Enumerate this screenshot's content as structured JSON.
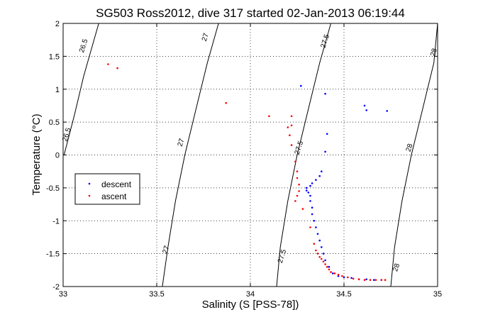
{
  "chart_data": {
    "type": "scatter",
    "title": "SG503 Ross2012, dive 317 started 02-Jan-2013 06:19:44",
    "xlabel": "Salinity (S [PSS-78])",
    "ylabel": "Temperature (°C)",
    "xlim": [
      33,
      35
    ],
    "ylim": [
      -2,
      2
    ],
    "grid": true,
    "grid_style": "dotted",
    "legend_position": "middle-left",
    "x_ticks": [
      33,
      33.5,
      34,
      34.5,
      35
    ],
    "x_tick_labels": [
      "33",
      "33.5",
      "34",
      "34.5",
      "35"
    ],
    "y_ticks": [
      -2,
      -1.5,
      -1,
      -0.5,
      0,
      0.5,
      1,
      1.5,
      2
    ],
    "y_tick_labels": [
      "-2",
      "-1.5",
      "-1",
      "-0.5",
      "0",
      "0.5",
      "1",
      "1.5",
      "2"
    ],
    "contours": [
      {
        "label": "26.5",
        "points": [
          [
            33.005,
            0
          ],
          [
            33.06,
            0.6
          ],
          [
            33.11,
            1.2
          ],
          [
            33.15,
            1.6
          ],
          [
            33.19,
            2
          ]
        ],
        "label_positions": [
          [
            33.03,
            0.3
          ],
          [
            33.12,
            1.65
          ]
        ]
      },
      {
        "label": "27",
        "points": [
          [
            33.53,
            -2
          ],
          [
            33.56,
            -1.4
          ],
          [
            33.6,
            -0.7
          ],
          [
            33.65,
            0
          ],
          [
            33.71,
            0.7
          ],
          [
            33.77,
            1.4
          ],
          [
            33.83,
            2
          ]
        ],
        "label_positions": [
          [
            33.56,
            -1.45
          ],
          [
            33.64,
            0.18
          ],
          [
            33.77,
            1.78
          ]
        ]
      },
      {
        "label": "27.5",
        "points": [
          [
            34.14,
            -2
          ],
          [
            34.16,
            -1.4
          ],
          [
            34.2,
            -0.7
          ],
          [
            34.25,
            0
          ],
          [
            34.31,
            0.7
          ],
          [
            34.37,
            1.4
          ],
          [
            34.43,
            2
          ]
        ],
        "label_positions": [
          [
            34.18,
            -1.55
          ],
          [
            34.27,
            0.1
          ],
          [
            34.41,
            1.72
          ]
        ]
      },
      {
        "label": "28",
        "points": [
          [
            34.75,
            -2
          ],
          [
            34.77,
            -1.4
          ],
          [
            34.81,
            -0.7
          ],
          [
            34.86,
            0
          ],
          [
            34.92,
            0.7
          ],
          [
            34.98,
            1.4
          ],
          [
            35.04,
            2
          ]
        ],
        "label_positions": [
          [
            34.79,
            -1.72
          ],
          [
            34.86,
            0.1
          ],
          [
            34.99,
            1.55
          ]
        ]
      }
    ],
    "series": [
      {
        "name": "descent",
        "color": "#0000ff",
        "marker": "dot",
        "points": [
          [
            34.27,
            1.05
          ],
          [
            34.4,
            0.93
          ],
          [
            34.61,
            0.75
          ],
          [
            34.62,
            0.68
          ],
          [
            34.73,
            0.67
          ],
          [
            34.41,
            0.32
          ],
          [
            34.4,
            0.05
          ],
          [
            34.38,
            -0.25
          ],
          [
            34.37,
            -0.32
          ],
          [
            34.35,
            -0.38
          ],
          [
            34.33,
            -0.43
          ],
          [
            34.32,
            -0.47
          ],
          [
            34.3,
            -0.5
          ],
          [
            34.3,
            -0.54
          ],
          [
            34.31,
            -0.57
          ],
          [
            34.32,
            -0.62
          ],
          [
            34.32,
            -0.7
          ],
          [
            34.33,
            -0.8
          ],
          [
            34.33,
            -0.9
          ],
          [
            34.34,
            -1.0
          ],
          [
            34.35,
            -1.1
          ],
          [
            34.36,
            -1.2
          ],
          [
            34.37,
            -1.3
          ],
          [
            34.38,
            -1.4
          ],
          [
            34.39,
            -1.5
          ],
          [
            34.4,
            -1.6
          ],
          [
            34.42,
            -1.7
          ],
          [
            34.44,
            -1.8
          ],
          [
            34.47,
            -1.84
          ],
          [
            34.5,
            -1.86
          ],
          [
            34.54,
            -1.87
          ],
          [
            34.58,
            -1.89
          ],
          [
            34.62,
            -1.89
          ],
          [
            34.66,
            -1.9
          ],
          [
            34.7,
            -1.9
          ]
        ]
      },
      {
        "name": "ascent",
        "color": "#ff0000",
        "marker": "dot",
        "points": [
          [
            33.24,
            1.38
          ],
          [
            33.29,
            1.32
          ],
          [
            33.87,
            0.79
          ],
          [
            34.1,
            0.59
          ],
          [
            34.22,
            0.59
          ],
          [
            34.22,
            0.45
          ],
          [
            34.2,
            0.42
          ],
          [
            34.21,
            0.3
          ],
          [
            34.22,
            0.15
          ],
          [
            34.24,
            -0.1
          ],
          [
            34.25,
            -0.25
          ],
          [
            34.25,
            -0.35
          ],
          [
            34.26,
            -0.45
          ],
          [
            34.26,
            -0.55
          ],
          [
            34.25,
            -0.62
          ],
          [
            34.24,
            -0.7
          ],
          [
            34.28,
            -0.82
          ],
          [
            34.32,
            -1.1
          ],
          [
            34.34,
            -1.35
          ],
          [
            34.35,
            -1.45
          ],
          [
            34.36,
            -1.5
          ],
          [
            34.37,
            -1.55
          ],
          [
            34.38,
            -1.58
          ],
          [
            34.39,
            -1.62
          ],
          [
            34.4,
            -1.66
          ],
          [
            34.41,
            -1.7
          ],
          [
            34.42,
            -1.74
          ],
          [
            34.43,
            -1.78
          ],
          [
            34.45,
            -1.8
          ],
          [
            34.47,
            -1.82
          ],
          [
            34.49,
            -1.84
          ],
          [
            34.52,
            -1.86
          ],
          [
            34.55,
            -1.88
          ],
          [
            34.58,
            -1.89
          ],
          [
            34.61,
            -1.9
          ],
          [
            34.64,
            -1.9
          ],
          [
            34.67,
            -1.9
          ],
          [
            34.7,
            -1.9
          ],
          [
            34.72,
            -1.9
          ]
        ]
      }
    ]
  }
}
